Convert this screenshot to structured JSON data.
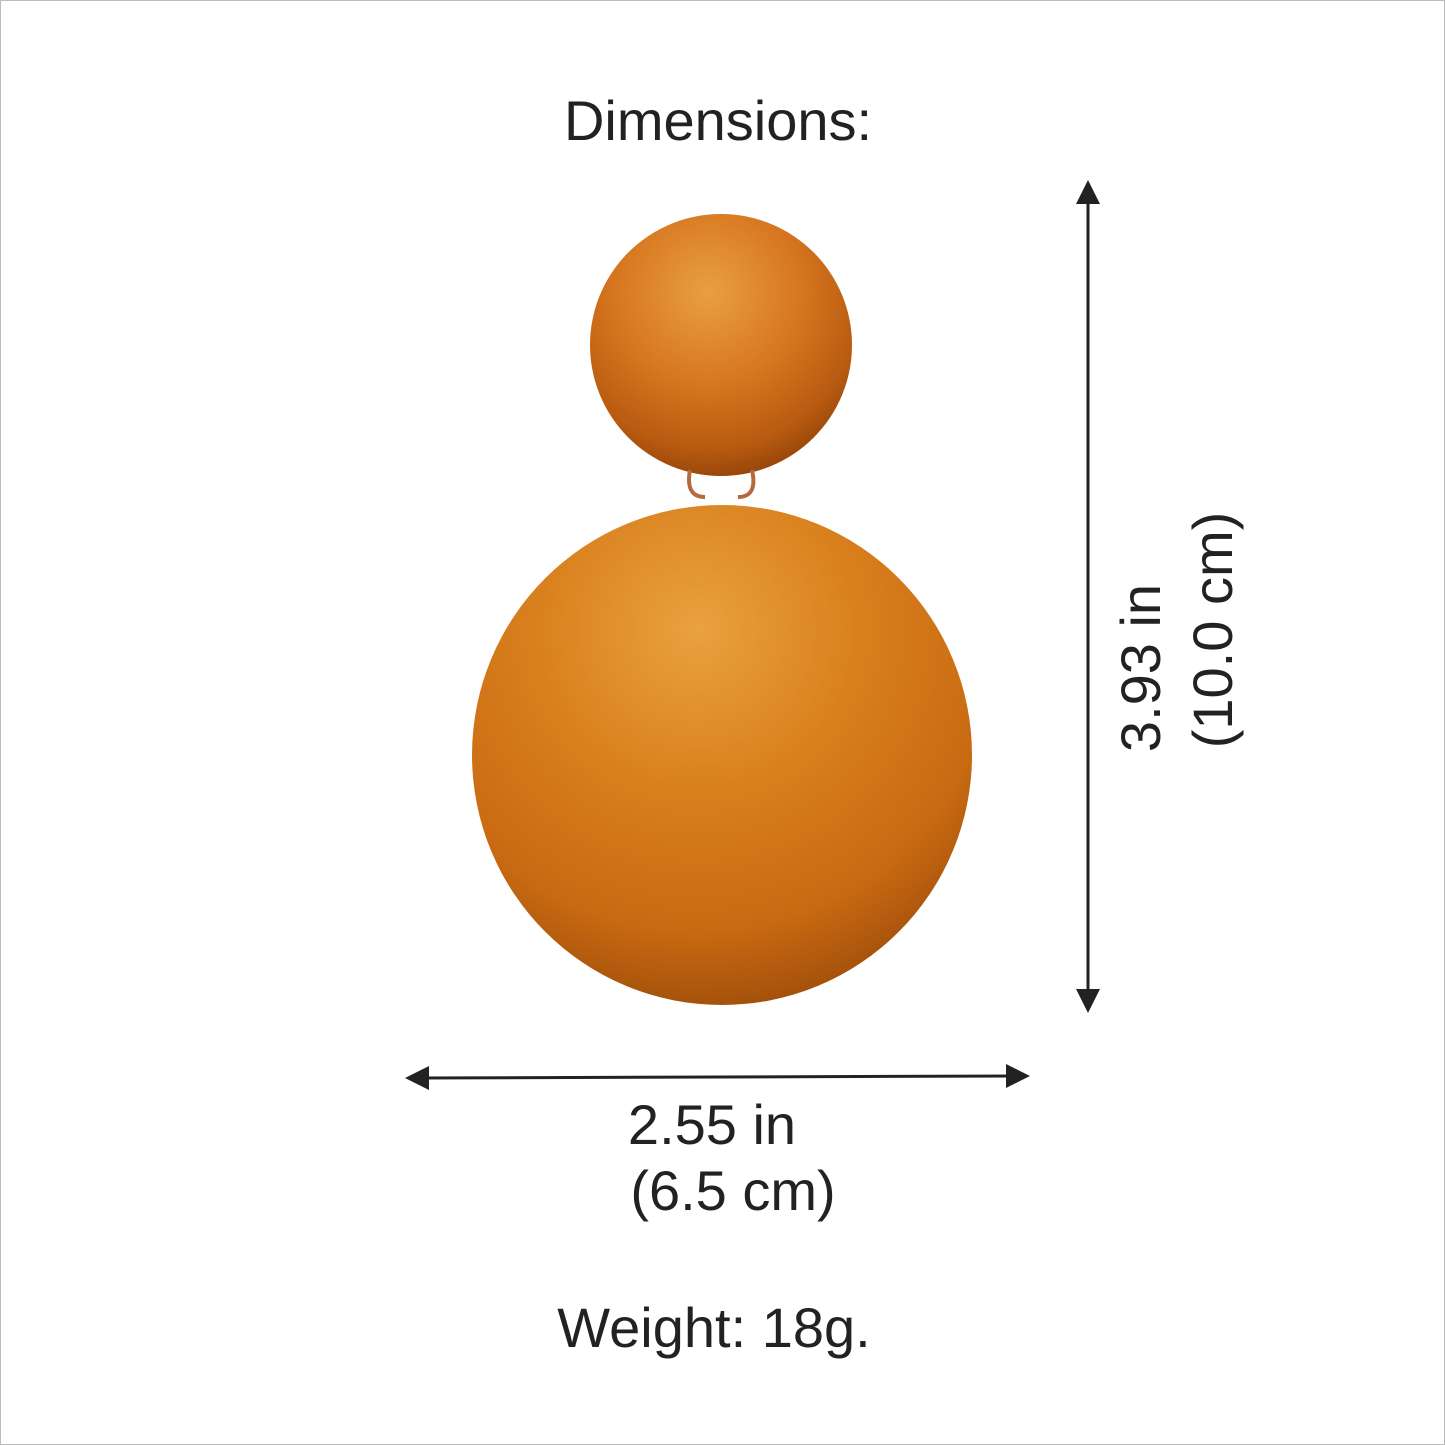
{
  "title": "Dimensions:",
  "height": {
    "inches": "3.93 in",
    "cm": "(10.0 cm)"
  },
  "width": {
    "inches": "2.55 in",
    "cm": "(6.5 cm)"
  },
  "weight": "Weight: 18g."
}
